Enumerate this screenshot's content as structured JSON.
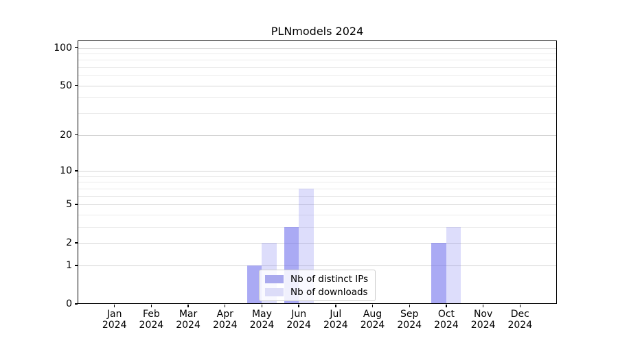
{
  "title": "PLNmodels 2024",
  "chart_data": {
    "type": "bar",
    "title": "PLNmodels 2024",
    "x_axis": {
      "months": [
        "Jan",
        "Feb",
        "Mar",
        "Apr",
        "May",
        "Jun",
        "Jul",
        "Aug",
        "Sep",
        "Oct",
        "Nov",
        "Dec"
      ],
      "year": "2024"
    },
    "y_axis": {
      "scale": "log1p",
      "ticks": [
        0,
        1,
        2,
        5,
        10,
        20,
        50,
        100
      ],
      "minor_ticks": [
        3,
        4,
        6,
        7,
        8,
        9,
        30,
        40,
        60,
        70,
        80,
        90
      ],
      "range": [
        0,
        114
      ]
    },
    "series": [
      {
        "name": "Nb of distinct IPs",
        "color": "rgba(100,100,235,0.55)",
        "legend_color": "#a9a9ee",
        "values": [
          0,
          0,
          0,
          0,
          1,
          3,
          0,
          0,
          0,
          2,
          0,
          0
        ]
      },
      {
        "name": "Nb of downloads",
        "color": "rgba(100,100,235,0.22)",
        "legend_color": "#dcdcf8",
        "values": [
          0,
          0,
          0,
          0,
          2,
          7,
          0,
          0,
          0,
          3,
          0,
          0
        ]
      }
    ],
    "grid": {
      "major_color": "#d4d4d4",
      "minor_color": "#ebebeb"
    },
    "legend": {
      "position": "lower-center",
      "items": [
        "Nb of distinct IPs",
        "Nb of downloads"
      ]
    }
  }
}
